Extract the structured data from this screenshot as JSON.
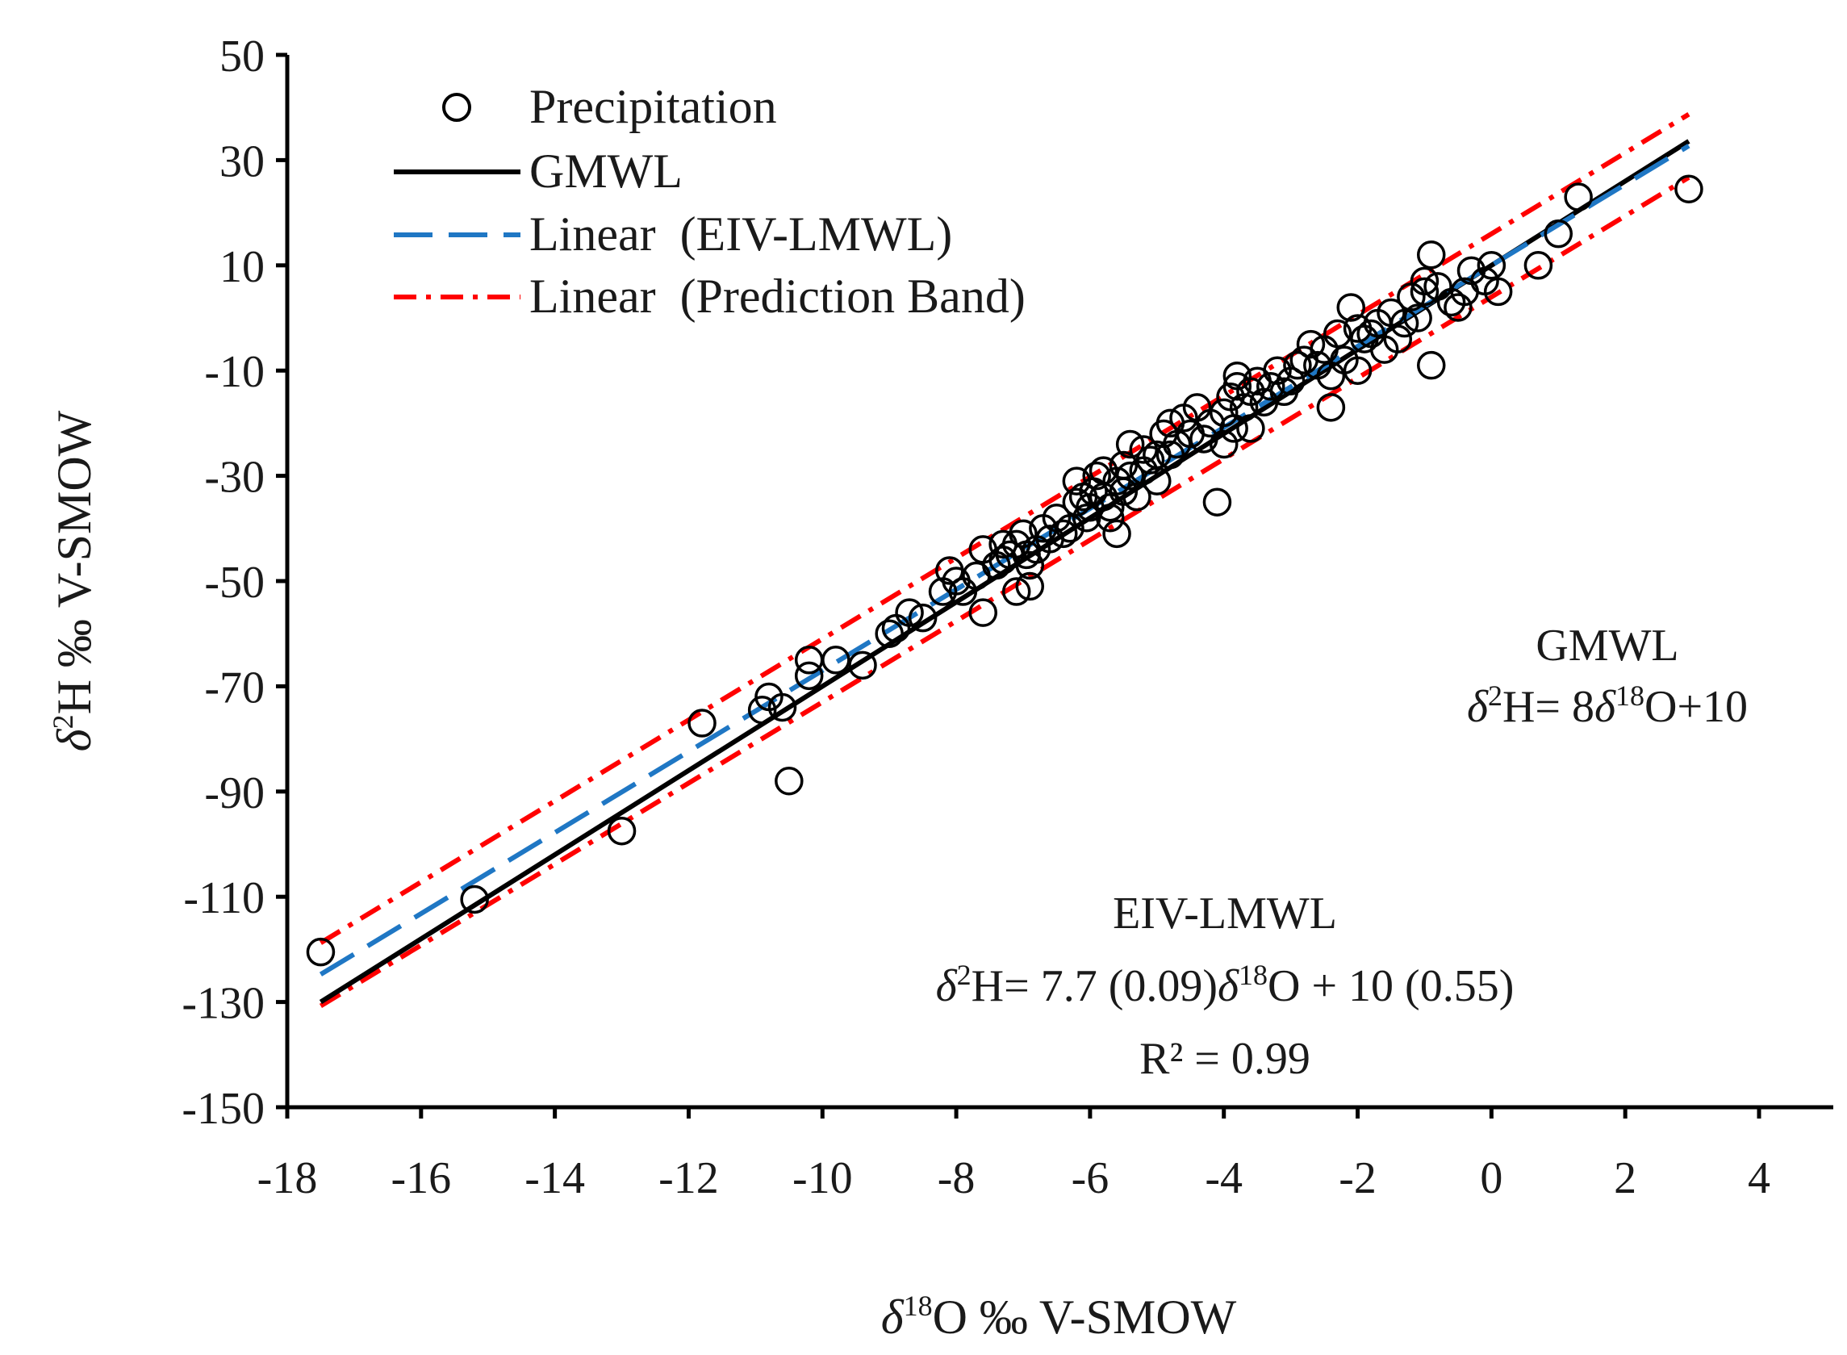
{
  "chart_data": {
    "type": "scatter",
    "xlabel": {
      "delta": "δ",
      "sup": "18",
      "rest": "O ‰ V-SMOW"
    },
    "ylabel": {
      "delta": "δ",
      "sup": "2",
      "rest": "H ‰ V-SMOW"
    },
    "xlim": [
      -18,
      5
    ],
    "ylim": [
      -150,
      50
    ],
    "xticks": [
      -18,
      -16,
      -14,
      -12,
      -10,
      -8,
      -6,
      -4,
      -2,
      0,
      2,
      4
    ],
    "yticks": [
      -150,
      -130,
      -110,
      -90,
      -70,
      -50,
      -30,
      -10,
      10,
      30,
      50
    ],
    "legend": {
      "position": "top-left",
      "entries": [
        {
          "label": "Precipitation",
          "style": "circle"
        },
        {
          "label": "GMWL",
          "style": "solid"
        },
        {
          "label": "Linear  (EIV-LMWL)",
          "style": "dashed"
        },
        {
          "label": "Linear  (Prediction Band)",
          "style": "dashdot"
        }
      ]
    },
    "lines": [
      {
        "name": "GMWL",
        "slope": 8,
        "intercept": 10,
        "x_range": [
          -17.5,
          2.95
        ],
        "color": "#000000",
        "style": "solid"
      },
      {
        "name": "EIV-LMWL",
        "slope": 7.7,
        "intercept": 10,
        "x_range": [
          -17.5,
          2.95
        ],
        "color": "#1f77c4",
        "style": "dashed"
      },
      {
        "name": "Prediction Band (upper)",
        "slope": 7.7,
        "intercept": 16,
        "x_range": [
          -17.5,
          2.95
        ],
        "color": "#ff0000",
        "style": "dashdot"
      },
      {
        "name": "Prediction Band (lower)",
        "slope": 7.7,
        "intercept": 4,
        "x_range": [
          -17.5,
          2.95
        ],
        "color": "#ff0000",
        "style": "dashdot"
      }
    ],
    "series": [
      {
        "name": "Precipitation",
        "points": [
          [
            -17.5,
            -120.5
          ],
          [
            -15.2,
            -110.5
          ],
          [
            -13.0,
            -97.5
          ],
          [
            -11.8,
            -77
          ],
          [
            -10.9,
            -74.5
          ],
          [
            -10.8,
            -72
          ],
          [
            -10.6,
            -74
          ],
          [
            -10.5,
            -88
          ],
          [
            -10.2,
            -68
          ],
          [
            -10.2,
            -65
          ],
          [
            -9.8,
            -65
          ],
          [
            -9.4,
            -66
          ],
          [
            -9.0,
            -60
          ],
          [
            -8.9,
            -59
          ],
          [
            -8.7,
            -56
          ],
          [
            -8.5,
            -57
          ],
          [
            -8.2,
            -52
          ],
          [
            -8.1,
            -48
          ],
          [
            -8.0,
            -50
          ],
          [
            -7.9,
            -52
          ],
          [
            -7.7,
            -49
          ],
          [
            -7.6,
            -44
          ],
          [
            -7.6,
            -56
          ],
          [
            -7.4,
            -47
          ],
          [
            -7.3,
            -43
          ],
          [
            -7.3,
            -46
          ],
          [
            -7.2,
            -45
          ],
          [
            -7.1,
            -43
          ],
          [
            -7.1,
            -52
          ],
          [
            -7.0,
            -41
          ],
          [
            -6.95,
            -45
          ],
          [
            -6.9,
            -51
          ],
          [
            -6.9,
            -47
          ],
          [
            -6.8,
            -44
          ],
          [
            -6.7,
            -40
          ],
          [
            -6.6,
            -42
          ],
          [
            -6.5,
            -38
          ],
          [
            -6.4,
            -41
          ],
          [
            -6.3,
            -40
          ],
          [
            -6.2,
            -35
          ],
          [
            -6.2,
            -31
          ],
          [
            -6.1,
            -34
          ],
          [
            -6.05,
            -38
          ],
          [
            -6.0,
            -36
          ],
          [
            -5.95,
            -33
          ],
          [
            -5.9,
            -30
          ],
          [
            -5.8,
            -34
          ],
          [
            -5.8,
            -29
          ],
          [
            -5.7,
            -38
          ],
          [
            -5.7,
            -36
          ],
          [
            -5.6,
            -41
          ],
          [
            -5.6,
            -31
          ],
          [
            -5.5,
            -33
          ],
          [
            -5.5,
            -28
          ],
          [
            -5.4,
            -30
          ],
          [
            -5.4,
            -24
          ],
          [
            -5.3,
            -34
          ],
          [
            -5.2,
            -29
          ],
          [
            -5.2,
            -25
          ],
          [
            -5.1,
            -27
          ],
          [
            -5.0,
            -31
          ],
          [
            -5.0,
            -26
          ],
          [
            -4.9,
            -22
          ],
          [
            -4.8,
            -26
          ],
          [
            -4.8,
            -20
          ],
          [
            -4.7,
            -24
          ],
          [
            -4.6,
            -19
          ],
          [
            -4.5,
            -22
          ],
          [
            -4.4,
            -17
          ],
          [
            -4.3,
            -23
          ],
          [
            -4.2,
            -20
          ],
          [
            -4.1,
            -35
          ],
          [
            -4.0,
            -24
          ],
          [
            -4.0,
            -18
          ],
          [
            -3.9,
            -15
          ],
          [
            -3.85,
            -21
          ],
          [
            -3.8,
            -11
          ],
          [
            -3.8,
            -13
          ],
          [
            -3.7,
            -17
          ],
          [
            -3.6,
            -21
          ],
          [
            -3.6,
            -14
          ],
          [
            -3.5,
            -12
          ],
          [
            -3.4,
            -16
          ],
          [
            -3.3,
            -13
          ],
          [
            -3.2,
            -10
          ],
          [
            -3.1,
            -14
          ],
          [
            -3.0,
            -12
          ],
          [
            -2.9,
            -9
          ],
          [
            -2.8,
            -8
          ],
          [
            -2.7,
            -5
          ],
          [
            -2.6,
            -9
          ],
          [
            -2.5,
            -6
          ],
          [
            -2.4,
            -17
          ],
          [
            -2.4,
            -11
          ],
          [
            -2.3,
            -3
          ],
          [
            -2.2,
            -8
          ],
          [
            -2.1,
            2
          ],
          [
            -2.0,
            -10
          ],
          [
            -2.0,
            -2
          ],
          [
            -1.9,
            -4
          ],
          [
            -1.8,
            -3
          ],
          [
            -1.7,
            -1
          ],
          [
            -1.6,
            -6
          ],
          [
            -1.5,
            1
          ],
          [
            -1.4,
            -4
          ],
          [
            -1.3,
            -1
          ],
          [
            -1.2,
            4
          ],
          [
            -1.1,
            0
          ],
          [
            -1.0,
            5
          ],
          [
            -1.0,
            7
          ],
          [
            -0.9,
            12
          ],
          [
            -0.9,
            -9
          ],
          [
            -0.8,
            6
          ],
          [
            -0.6,
            3
          ],
          [
            -0.5,
            2
          ],
          [
            -0.4,
            5
          ],
          [
            -0.3,
            9
          ],
          [
            -0.1,
            7
          ],
          [
            0.0,
            10
          ],
          [
            0.1,
            5
          ],
          [
            0.7,
            10
          ],
          [
            1.0,
            16
          ],
          [
            1.3,
            23
          ],
          [
            2.95,
            24.5
          ]
        ]
      }
    ],
    "annotations": {
      "gmwl_title": "GMWL",
      "gmwl_eq": {
        "d1": "δ",
        "s1": "2",
        "t1": "H= 8",
        "d2": "δ",
        "s2": "18",
        "t2": "O+10"
      },
      "eiv_title": "EIV-LMWL",
      "eiv_eq": {
        "d1": "δ",
        "s1": "2",
        "t1": "H= 7.7 (0.09)",
        "d2": "δ",
        "s2": "18",
        "t2": "O + 10 (0.55)"
      },
      "r2": "R² = 0.99"
    }
  }
}
